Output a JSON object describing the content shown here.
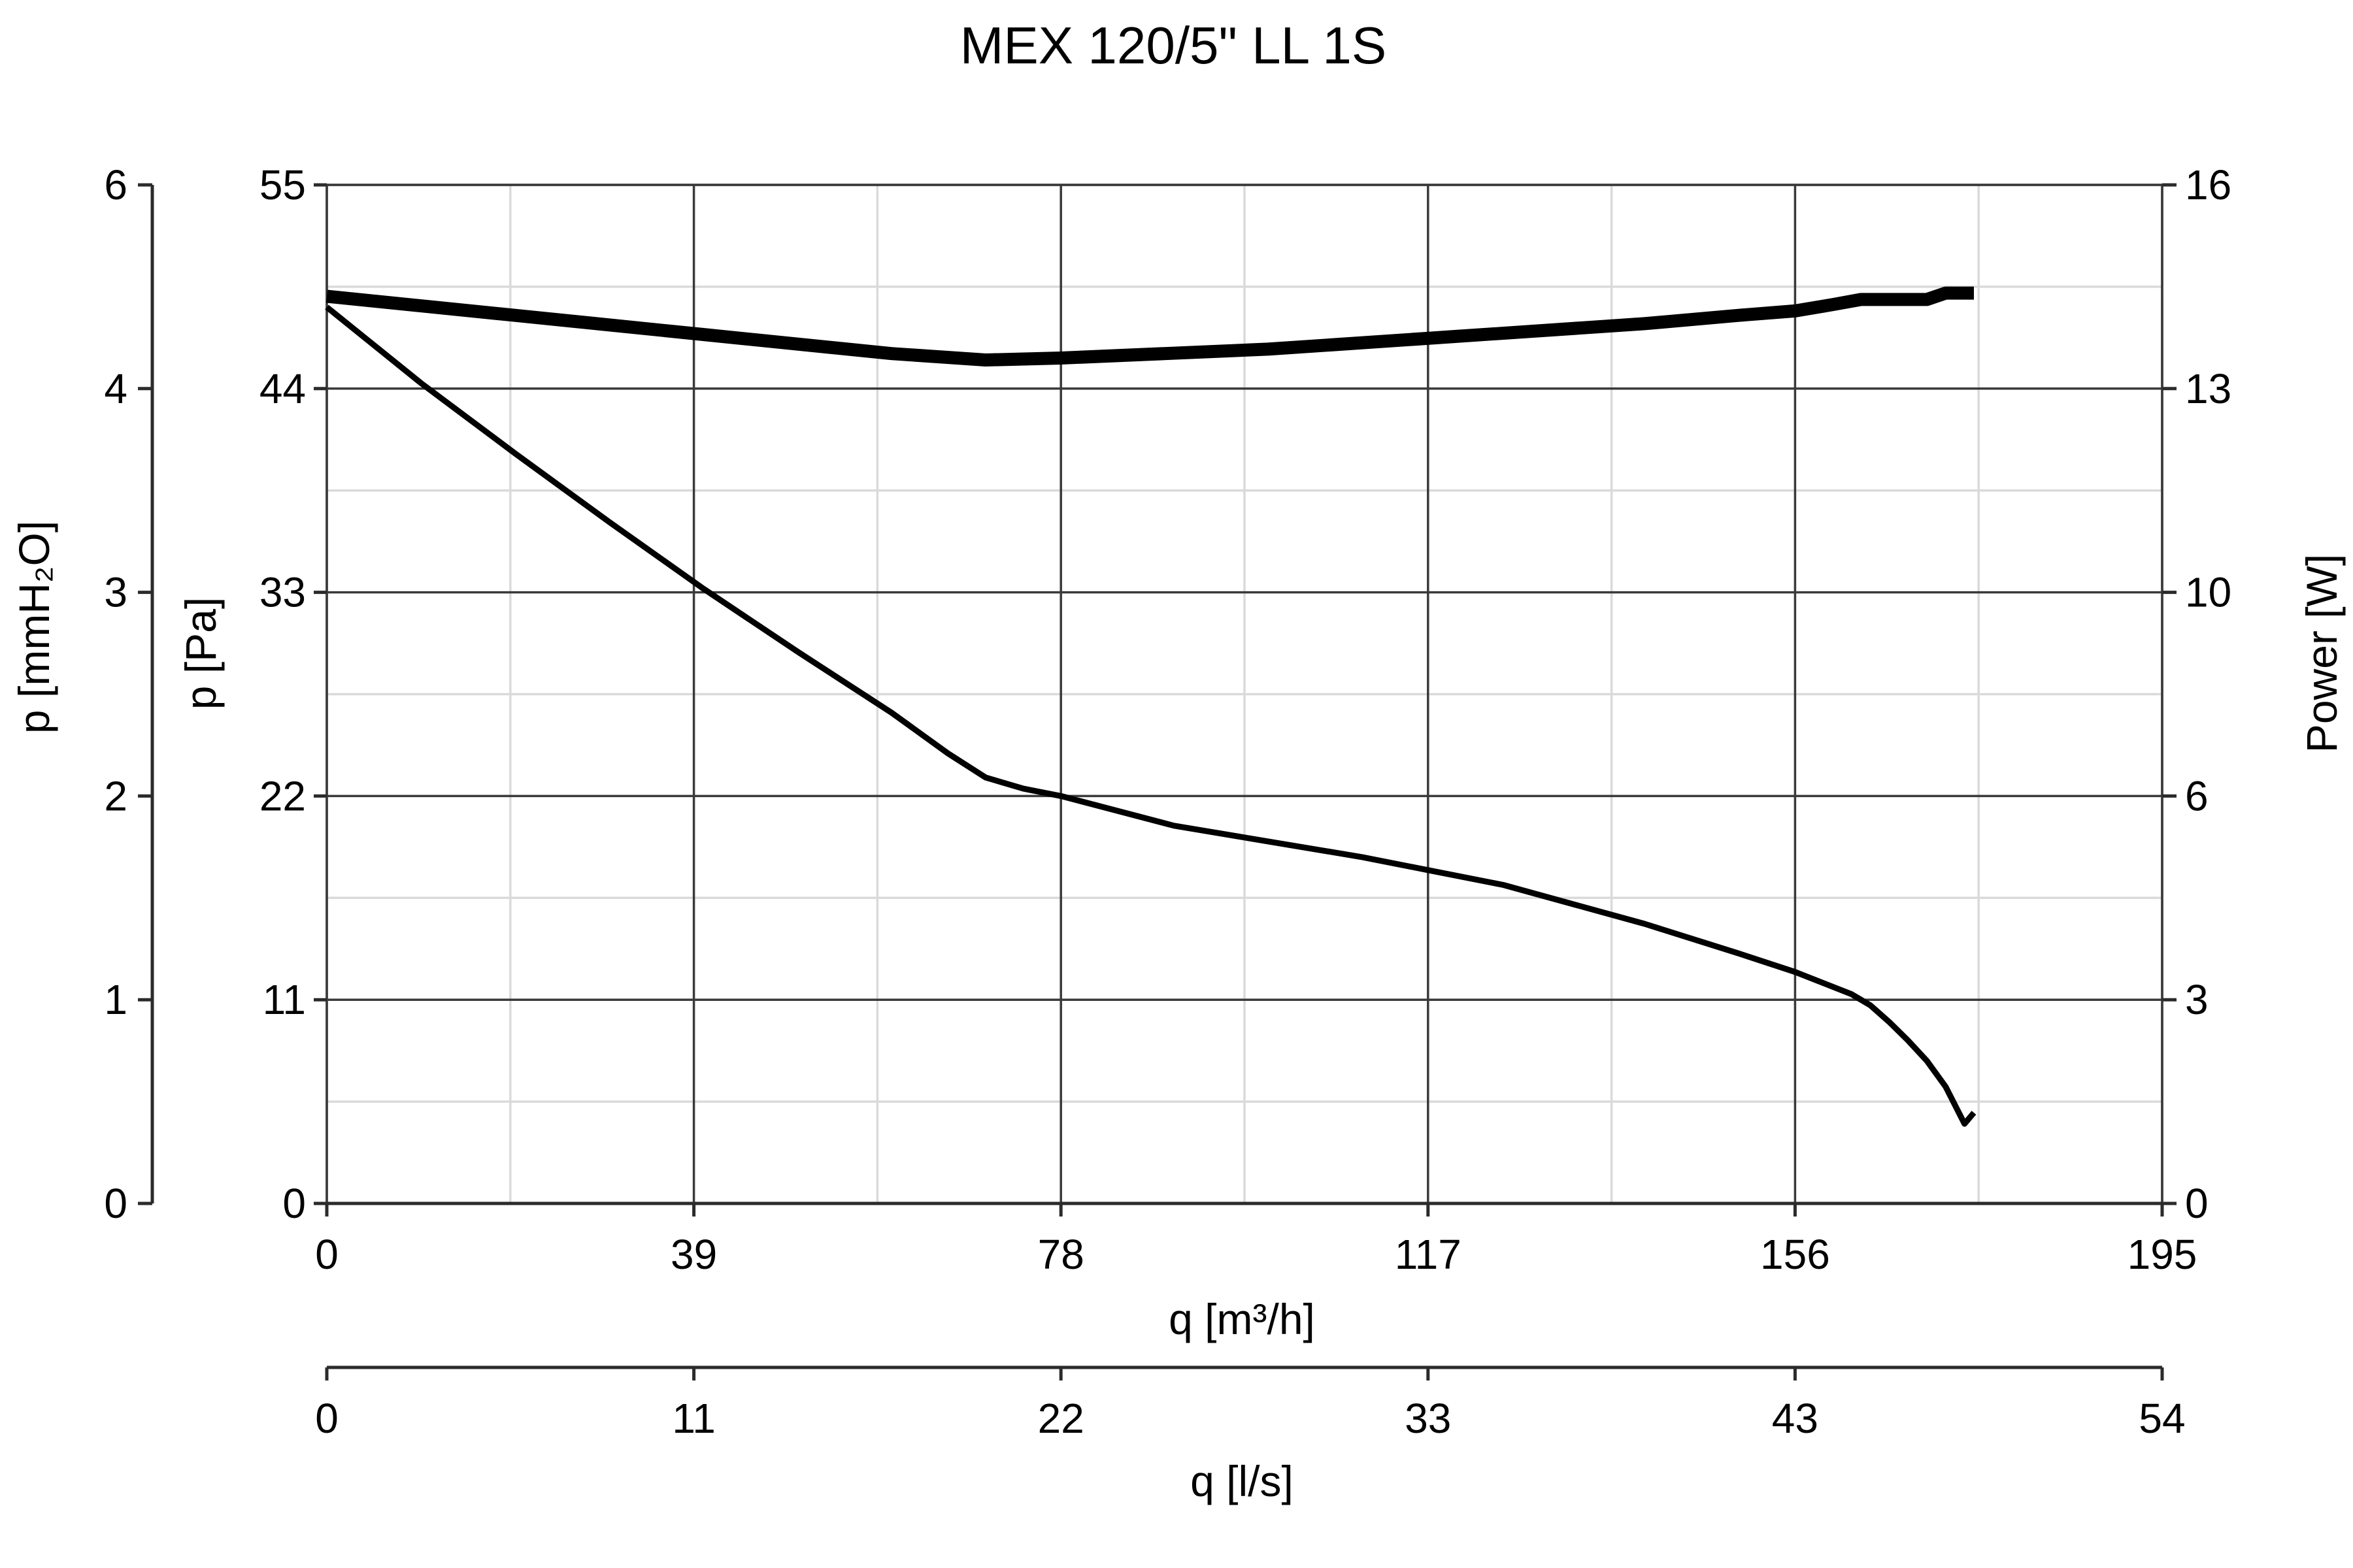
{
  "chart_data": {
    "type": "line",
    "title": "MEX 120/5\" LL 1S",
    "x_axis": {
      "label": "q [m³/h]",
      "range": [
        0,
        195
      ],
      "ticks": [
        "0",
        "39",
        "78",
        "117",
        "156",
        "195"
      ],
      "minor_step": 19.5
    },
    "x2_axis": {
      "label": "q [l/s]",
      "range": [
        0,
        54
      ],
      "ticks": [
        "0",
        "11",
        "22",
        "33",
        "43",
        "54"
      ]
    },
    "y_axis": {
      "label": "p [Pa]",
      "range": [
        0,
        55
      ],
      "ticks": [
        "0",
        "11",
        "22",
        "33",
        "44",
        "55"
      ],
      "minor_step": 5.5
    },
    "y_axis_outer": {
      "label": "p [mmH₂O]",
      "range": [
        0,
        6
      ],
      "ticks": [
        "0",
        "1",
        "2",
        "3",
        "4",
        "6"
      ]
    },
    "y_axis_right": {
      "label": "Power [W]",
      "range": [
        0,
        16
      ],
      "ticks": [
        "0",
        "3",
        "6",
        "10",
        "13",
        "16"
      ]
    },
    "grid": true,
    "colors": {
      "curves": "#000000",
      "major_grid": "#3a3a3a",
      "minor_grid": "#dadada"
    },
    "series": [
      {
        "axis": "y",
        "x": [
          0,
          10,
          20,
          30,
          40,
          50,
          60,
          66,
          70,
          74,
          78,
          90,
          110,
          117,
          125,
          140,
          150,
          156,
          162,
          164,
          166,
          168,
          170,
          172,
          174,
          175
        ],
        "values": [
          48.4,
          44.3,
          40.5,
          36.8,
          33.2,
          29.8,
          26.5,
          24.3,
          23.0,
          22.4,
          22.0,
          20.4,
          18.7,
          18.0,
          17.2,
          15.1,
          13.5,
          12.5,
          11.3,
          10.7,
          9.8,
          8.8,
          7.7,
          6.3,
          4.3,
          4.9
        ]
      },
      {
        "axis": "y_right",
        "x": [
          0,
          20,
          40,
          60,
          70,
          78,
          100,
          120,
          140,
          150,
          156,
          160,
          163,
          170,
          172,
          175
        ],
        "values": [
          14.25,
          13.95,
          13.65,
          13.35,
          13.25,
          13.28,
          13.42,
          13.62,
          13.82,
          13.95,
          14.02,
          14.12,
          14.2,
          14.2,
          14.3,
          14.3
        ]
      }
    ]
  }
}
